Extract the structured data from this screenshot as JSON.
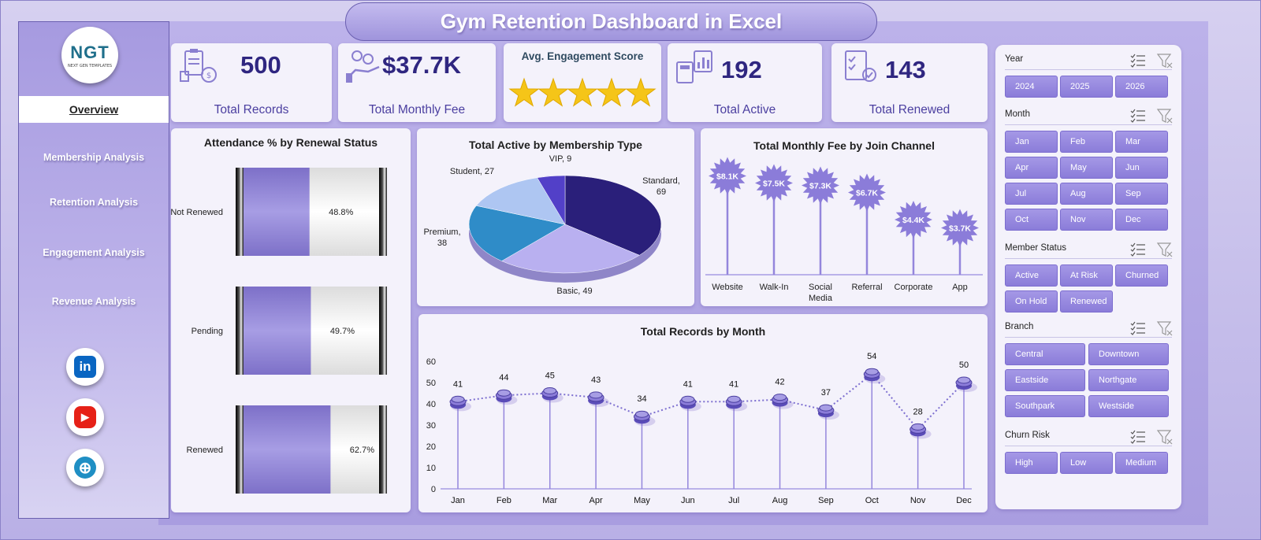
{
  "title": "Gym Retention Dashboard in Excel",
  "sidebar": {
    "logo_text": "NGT",
    "logo_subtext": "NEXT GEN TEMPLATES",
    "active": "Overview",
    "items": [
      "Membership Analysis",
      "Retention Analysis",
      "Engagement Analysis",
      "Revenue Analysis"
    ],
    "social": [
      {
        "name": "linkedin",
        "glyph": "in",
        "color": "#0a66c2"
      },
      {
        "name": "youtube",
        "glyph": "▶",
        "color": "#e62117"
      },
      {
        "name": "website",
        "glyph": "⊕",
        "color": "#1f8fc4"
      }
    ]
  },
  "kpis": {
    "total_records": {
      "value": "500",
      "label": "Total Records"
    },
    "total_monthly_fee": {
      "value": "$37.7K",
      "label": "Total Monthly Fee"
    },
    "engagement": {
      "label": "Avg. Engagement Score",
      "stars": 5
    },
    "total_active": {
      "value": "192",
      "label": "Total Active"
    },
    "total_renewed": {
      "value": "143",
      "label": "Total Renewed"
    }
  },
  "chart_data": [
    {
      "type": "bar",
      "title": "Attendance % by Renewal Status",
      "categories": [
        "Not Renewed",
        "Pending",
        "Renewed"
      ],
      "values": [
        48.8,
        49.7,
        62.7
      ],
      "value_labels": [
        "48.8%",
        "49.7%",
        "62.7%"
      ],
      "unit": "%",
      "xlim": [
        0,
        100
      ]
    },
    {
      "type": "pie",
      "title": "Total Active by Membership Type",
      "categories": [
        "Standard",
        "Basic",
        "Premium",
        "Student",
        "VIP"
      ],
      "values": [
        69,
        49,
        38,
        27,
        9
      ],
      "data_labels": [
        "Standard,",
        "Basic,",
        "Premium,",
        "Student,",
        "VIP,"
      ],
      "colors": [
        "#2a1f7a",
        "#b9b0f0",
        "#2f8cc8",
        "#aec6f2",
        "#5240c8"
      ]
    },
    {
      "type": "bar",
      "title": "Total Monthly Fee by Join Channel",
      "categories": [
        "Website",
        "Walk-In",
        "Social Media",
        "Referral",
        "Corporate",
        "App"
      ],
      "values": [
        8.1,
        7.5,
        7.3,
        6.7,
        4.4,
        3.7
      ],
      "value_labels": [
        "$8.1K",
        "$7.5K",
        "$7.3K",
        "$6.7K",
        "$4.4K",
        "$3.7K"
      ],
      "unit": "$K"
    },
    {
      "type": "line",
      "title": "Total Records by Month",
      "categories": [
        "Jan",
        "Feb",
        "Mar",
        "Apr",
        "May",
        "Jun",
        "Jul",
        "Aug",
        "Sep",
        "Oct",
        "Nov",
        "Dec"
      ],
      "values": [
        41,
        44,
        45,
        43,
        34,
        41,
        41,
        42,
        37,
        54,
        28,
        50
      ],
      "ylim": [
        0,
        60
      ],
      "yticks": [
        "0",
        "10",
        "20",
        "30",
        "40",
        "50",
        "60"
      ]
    }
  ],
  "slicers": {
    "year": {
      "label": "Year",
      "options": [
        "2024",
        "2025",
        "2026"
      ]
    },
    "month": {
      "label": "Month",
      "options": [
        "Jan",
        "Feb",
        "Mar",
        "Apr",
        "May",
        "Jun",
        "Jul",
        "Aug",
        "Sep",
        "Oct",
        "Nov",
        "Dec"
      ]
    },
    "member_status": {
      "label": "Member Status",
      "options": [
        "Active",
        "At Risk",
        "Churned",
        "On Hold",
        "Renewed"
      ]
    },
    "branch": {
      "label": "Branch",
      "options": [
        "Central",
        "Downtown",
        "Eastside",
        "Northgate",
        "Southpark",
        "Westside"
      ]
    },
    "churn_risk": {
      "label": "Churn Risk",
      "options": [
        "High",
        "Low",
        "Medium"
      ]
    }
  }
}
